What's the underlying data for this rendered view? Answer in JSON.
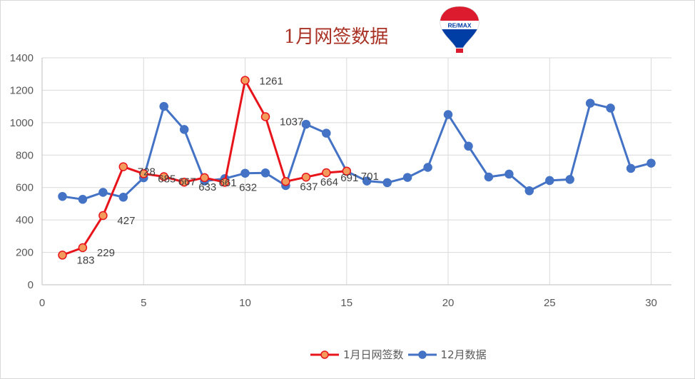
{
  "chart_data": {
    "type": "line",
    "title": "1月网签数据",
    "xlabel": "",
    "ylabel": "",
    "xlim": [
      0,
      31
    ],
    "ylim": [
      0,
      1400
    ],
    "x_ticks": [
      0,
      5,
      10,
      15,
      20,
      25,
      30
    ],
    "y_ticks": [
      0,
      200,
      400,
      600,
      800,
      1000,
      1200,
      1400
    ],
    "grid": true,
    "legend_position": "bottom",
    "series": [
      {
        "name": "1月日网签数",
        "color": "#e8141b",
        "marker_fill": "#f29b5c",
        "x": [
          1,
          2,
          3,
          4,
          5,
          6,
          7,
          8,
          9,
          10,
          11,
          12,
          13,
          14,
          15
        ],
        "values": [
          183,
          229,
          427,
          728,
          685,
          667,
          633,
          661,
          632,
          1261,
          1037,
          637,
          664,
          691,
          701
        ],
        "data_labels": [
          "183",
          "229",
          "427",
          "728",
          "685",
          "667",
          "633",
          "661",
          "632",
          "1261",
          "1037",
          "637",
          "664",
          "691",
          "701"
        ]
      },
      {
        "name": "12月数据",
        "color": "#4472c4",
        "marker_fill": "#4472c4",
        "x": [
          1,
          2,
          3,
          4,
          5,
          6,
          7,
          8,
          9,
          10,
          11,
          12,
          13,
          14,
          15,
          16,
          17,
          18,
          19,
          20,
          21,
          22,
          23,
          24,
          25,
          26,
          27,
          28,
          29,
          30
        ],
        "values": [
          545,
          527,
          570,
          540,
          660,
          1100,
          958,
          640,
          655,
          688,
          690,
          612,
          990,
          935,
          700,
          640,
          630,
          662,
          724,
          1050,
          855,
          665,
          683,
          580,
          643,
          650,
          1120,
          1090,
          718,
          750
        ]
      }
    ]
  },
  "logo": {
    "text": "RE/MAX",
    "colors": {
      "red": "#dc1c2e",
      "blue": "#003da5",
      "white": "#ffffff"
    }
  }
}
